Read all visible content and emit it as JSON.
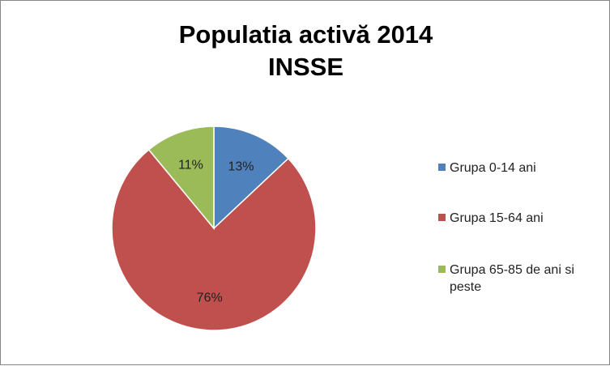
{
  "chart_data": {
    "type": "pie",
    "title": "Populatia activă 2014",
    "subtitle": "INSSE",
    "categories": [
      "Grupa 0-14 ani",
      "Grupa 15-64 ani",
      "Grupa 65-85 de ani si peste"
    ],
    "values": [
      13,
      76,
      11
    ],
    "data_labels": [
      "13%",
      "76%",
      "11%"
    ],
    "colors": [
      "#4F81BD",
      "#C0504D",
      "#9BBB59"
    ],
    "legend_position": "right"
  }
}
